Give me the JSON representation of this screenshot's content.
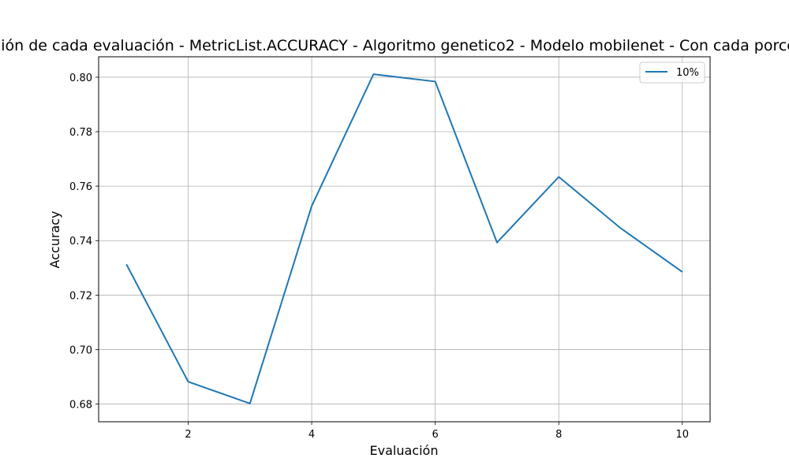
{
  "chart_data": {
    "type": "line",
    "title": "Variación de cada evaluación - MetricList.ACCURACY - Algoritmo genetico2 - Modelo mobilenet - Con cada porcentaje",
    "xlabel": "Evaluación",
    "ylabel": "Accuracy",
    "x": [
      1,
      2,
      3,
      4,
      5,
      6,
      7,
      8,
      9,
      10
    ],
    "xlim": [
      0.55,
      10.45
    ],
    "ylim": [
      0.6735,
      0.8075
    ],
    "xticks": [
      2,
      4,
      6,
      8,
      10
    ],
    "yticks": [
      0.68,
      0.7,
      0.72,
      0.74,
      0.76,
      0.78,
      0.8
    ],
    "grid": true,
    "legend_position": "top-right",
    "series": [
      {
        "name": "10%",
        "color": "#1f77b4",
        "values": [
          0.7313,
          0.6882,
          0.6802,
          0.7527,
          0.8011,
          0.7984,
          0.7393,
          0.7634,
          0.7446,
          0.7285
        ]
      }
    ]
  }
}
